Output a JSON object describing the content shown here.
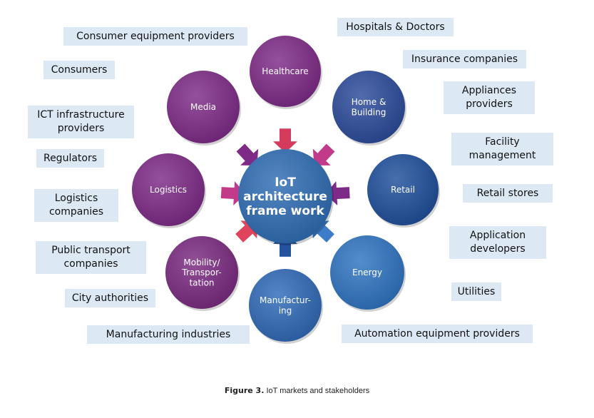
{
  "center": {
    "title": "IoT\narchitecture\nframe work",
    "color": "#2e6db5"
  },
  "markets": [
    {
      "id": "healthcare",
      "label": "Healthcare",
      "color": "#7e2a87",
      "arrow": "#d63a5c"
    },
    {
      "id": "home-building",
      "label": "Home &\nBuilding",
      "color": "#2b4b9b",
      "arrow": "#c23a8a"
    },
    {
      "id": "retail",
      "label": "Retail",
      "color": "#1f4f9c",
      "arrow": "#7e2a87"
    },
    {
      "id": "energy",
      "label": "Energy",
      "color": "#2f74c2",
      "arrow": "#3d7cc9"
    },
    {
      "id": "manufacturing",
      "label": "Manufactur-\ning",
      "color": "#2f6ab8",
      "arrow": "#23529e"
    },
    {
      "id": "mobility",
      "label": "Mobility/\nTranspor-\ntation",
      "color": "#7a2a80",
      "arrow": "#e0435c"
    },
    {
      "id": "logistics",
      "label": "Logistics",
      "color": "#7e2a87",
      "arrow": "#c23a8a"
    },
    {
      "id": "media",
      "label": "Media",
      "color": "#7e2a87",
      "arrow": "#7e2a87"
    }
  ],
  "stakeholders": [
    {
      "id": "consumer-equipment",
      "label": "Consumer equipment providers"
    },
    {
      "id": "hospitals",
      "label": "Hospitals & Doctors"
    },
    {
      "id": "consumers",
      "label": "Consumers"
    },
    {
      "id": "insurance",
      "label": "Insurance companies"
    },
    {
      "id": "appliances",
      "label": "Appliances\nproviders"
    },
    {
      "id": "ict",
      "label": "ICT infrastructure\nproviders"
    },
    {
      "id": "facility",
      "label": "Facility\nmanagement"
    },
    {
      "id": "regulators",
      "label": "Regulators"
    },
    {
      "id": "retail-stores",
      "label": "Retail stores"
    },
    {
      "id": "logistics-companies",
      "label": "Logistics\ncompanies"
    },
    {
      "id": "app-developers",
      "label": "Application\ndevelopers"
    },
    {
      "id": "public-transport",
      "label": "Public transport\ncompanies"
    },
    {
      "id": "utilities",
      "label": "Utilities"
    },
    {
      "id": "city-authorities",
      "label": "City authorities"
    },
    {
      "id": "manufacturing-industries",
      "label": "Manufacturing industries"
    },
    {
      "id": "automation",
      "label": "Automation equipment providers"
    }
  ],
  "caption": {
    "label": "Figure 3.",
    "text": "IoT markets and stakeholders"
  }
}
